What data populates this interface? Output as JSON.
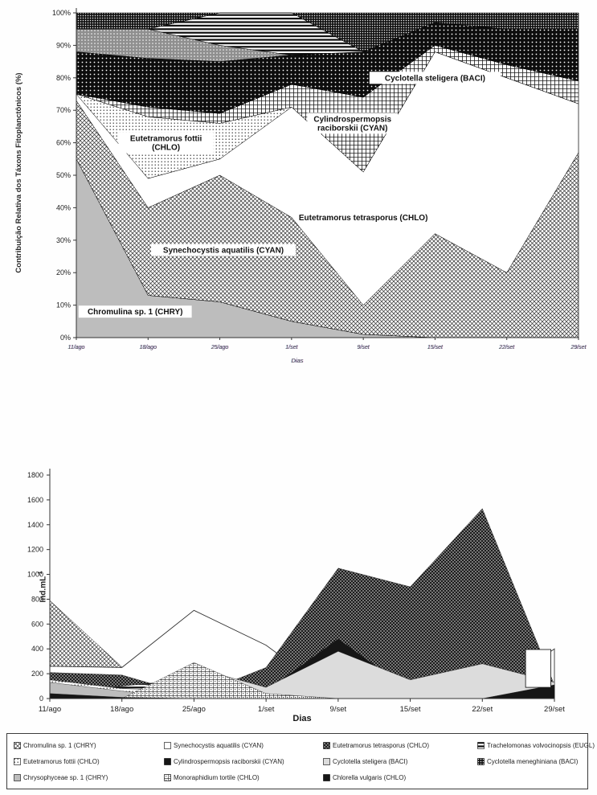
{
  "top_chart": {
    "y_axis_title": "Contribuição Relativa dos Táxons Fitoplanctônicos (%)",
    "x_axis_title": "Dias",
    "y_tick_labels": [
      "0%",
      "10%",
      "20%",
      "30%",
      "40%",
      "50%",
      "60%",
      "70%",
      "80%",
      "90%",
      "100%"
    ],
    "x_tick_labels": [
      "11/ago",
      "18/ago",
      "25/ago",
      "1/set",
      "9/set",
      "15/set",
      "22/set",
      "29/set"
    ],
    "inline_labels": [
      {
        "lines": [
          "Chromulina sp. 1 (CHRY)"
        ],
        "cat": 0.82,
        "pct": 8,
        "boxed": true
      },
      {
        "lines": [
          "Synechocystis aquatilis (CYAN)"
        ],
        "cat": 2.05,
        "pct": 27,
        "boxed": true
      },
      {
        "lines": [
          "Eutetramorus fottii",
          "(CHLO)"
        ],
        "cat": 1.25,
        "pct": 60,
        "boxed": true
      },
      {
        "lines": [
          "Eutetramorus tetrasporus (CHLO)"
        ],
        "cat": 4.0,
        "pct": 37,
        "boxed": false
      },
      {
        "lines": [
          "Cylindrospermopsis",
          "raciborskii (CYAN)"
        ],
        "cat": 3.85,
        "pct": 66,
        "boxed": true
      },
      {
        "lines": [
          "Cyclotella steligera (BACI)"
        ],
        "cat": 5.0,
        "pct": 80,
        "boxed": true
      }
    ]
  },
  "bottom_chart": {
    "y_axis_title": "Ind.mL",
    "y_axis_title_sup": "-1",
    "x_axis_title": "Dias",
    "y_tick_labels": [
      "0",
      "200",
      "400",
      "600",
      "800",
      "1000",
      "1200",
      "1400",
      "1600",
      "1800"
    ],
    "x_tick_labels": [
      "11/ago",
      "18/ago",
      "25/ago",
      "1/set",
      "9/set",
      "15/set",
      "22/set",
      "29/set"
    ]
  },
  "legend": {
    "items": [
      {
        "label": "Chromulina sp. 1 (CHRY)",
        "pattern": "diagCross"
      },
      {
        "label": "Synechocystis aquatilis (CYAN)",
        "pattern": "white"
      },
      {
        "label": "Eutetramorus tetrasporus (CHLO)",
        "pattern": "darkCross"
      },
      {
        "label": "Trachelomonas volvocinopsis (EUGL)",
        "pattern": "hStripes"
      },
      {
        "label": "Eutetramorus fottii (CHLO)",
        "pattern": "dotsLight"
      },
      {
        "label": "Cylindrospermopsis raciborskii (CYAN)",
        "pattern": "black"
      },
      {
        "label": "Cyclotella steligera (BACI)",
        "pattern": "lightGray"
      },
      {
        "label": "Cyclotella meneghiniana (BACI)",
        "pattern": "fineCheck"
      },
      {
        "label": "Chrysophyceae sp. 1 (CHRY)",
        "pattern": "gray"
      },
      {
        "label": "Monoraphidium tortile (CHLO)",
        "pattern": "plusGrid"
      },
      {
        "label": "Chlorella vulgaris (CHLO)",
        "pattern": "black"
      }
    ]
  },
  "colors": {
    "axis": "#333333",
    "text": "#1f1f1f",
    "solid_gray": "#bdbdbd",
    "light_gray": "#dcdcdc",
    "black_fill": "#161616"
  },
  "chart_data": [
    {
      "type": "area",
      "stacking": "percent",
      "title": "",
      "xlabel": "Dias",
      "ylabel": "Contribuição Relativa dos Táxons Fitoplanctônicos (%)",
      "ylim": [
        0,
        100
      ],
      "grid": false,
      "categories": [
        "11/ago",
        "18/ago",
        "25/ago",
        "1/set",
        "9/set",
        "15/set",
        "22/set",
        "29/set"
      ],
      "series": [
        {
          "name": "Chromulina sp. 1 (CHRY)",
          "pattern": "gray",
          "values": [
            55,
            13,
            11,
            5,
            1,
            0,
            0,
            0
          ]
        },
        {
          "name": "Synechocystis aquatilis (CYAN)",
          "pattern": "diagCross",
          "values": [
            18,
            27,
            39,
            32,
            9,
            32,
            20,
            57
          ]
        },
        {
          "name": "Eutetramorus tetrasporus (CHLO)",
          "pattern": "white",
          "values": [
            2,
            9,
            5,
            34,
            41,
            56,
            60,
            15
          ]
        },
        {
          "name": "Eutetramorus fottii (CHLO)",
          "pattern": "dotsLight",
          "values": [
            0,
            19,
            11,
            0,
            0,
            0,
            0,
            0
          ]
        },
        {
          "name": "Cylindrospermopsis raciborskii (CYAN)",
          "pattern": "grid",
          "values": [
            0,
            3,
            3,
            7,
            23,
            2,
            4,
            7
          ]
        },
        {
          "name": "Cyclotella steligera (BACI)",
          "pattern": "blackDots",
          "values": [
            13,
            15,
            16,
            9,
            14,
            7,
            11,
            16
          ]
        },
        {
          "name": "band-gray-dotted (unlabeled)",
          "pattern": "grayDots",
          "values": [
            7,
            9,
            5,
            0,
            0,
            0,
            0,
            0
          ]
        },
        {
          "name": "band-horizontal-stripes (unlabeled)",
          "pattern": "hStripes",
          "values": [
            0,
            0,
            10,
            13,
            0,
            0,
            0,
            0
          ]
        },
        {
          "name": "band-fine-check (unlabeled)",
          "pattern": "fineCheck",
          "values": [
            5,
            5,
            0,
            0,
            12,
            3,
            5,
            5
          ]
        }
      ]
    },
    {
      "type": "area",
      "stacking": "overlap",
      "title": "",
      "xlabel": "Dias",
      "ylabel": "Ind.mL-1",
      "ylim": [
        0,
        1800
      ],
      "grid": false,
      "legend_position": "bottom",
      "categories": [
        "11/ago",
        "18/ago",
        "25/ago",
        "1/set",
        "9/set",
        "15/set",
        "22/set",
        "29/set"
      ],
      "series": [
        {
          "name": "Chromulina sp. 1 (CHRY)",
          "pattern": "diagCross",
          "values": [
            790,
            255,
            60,
            10,
            10,
            10,
            10,
            10
          ]
        },
        {
          "name": "Synechocystis aquatilis (CYAN)",
          "pattern": "white",
          "values": [
            260,
            250,
            710,
            430,
            0,
            0,
            0,
            400
          ]
        },
        {
          "name": "Eutetramorus tetrasporus (CHLO)",
          "pattern": "darkCross",
          "values": [
            210,
            190,
            20,
            250,
            1050,
            900,
            1530,
            110
          ]
        },
        {
          "name": "Trachelomonas volvocinopsis (EUGL)",
          "pattern": "hStripes",
          "values": [
            30,
            100,
            160,
            10,
            0,
            0,
            0,
            0
          ]
        },
        {
          "name": "Eutetramorus fottii (CHLO)",
          "pattern": "dotsLight",
          "values": [
            150,
            80,
            60,
            0,
            0,
            0,
            0,
            0
          ]
        },
        {
          "name": "Cylindrospermopsis raciborskii (CYAN)",
          "pattern": "black",
          "values": [
            20,
            10,
            10,
            60,
            480,
            60,
            10,
            10
          ]
        },
        {
          "name": "Cyclotella steligera (BACI)",
          "pattern": "lightGray",
          "values": [
            0,
            0,
            250,
            90,
            380,
            150,
            280,
            130
          ]
        },
        {
          "name": "Cyclotella meneghiniana (BACI)",
          "pattern": "fineCheck",
          "values": [
            40,
            20,
            10,
            0,
            0,
            0,
            0,
            0
          ]
        },
        {
          "name": "Chrysophyceae sp. 1 (CHRY)",
          "pattern": "gray",
          "values": [
            130,
            60,
            0,
            0,
            0,
            0,
            0,
            0
          ]
        },
        {
          "name": "Monoraphidium tortile (CHLO)",
          "pattern": "plusGrid",
          "values": [
            0,
            0,
            290,
            40,
            0,
            0,
            0,
            0
          ]
        },
        {
          "name": "Chlorella vulgaris (CHLO)",
          "pattern": "black",
          "values": [
            40,
            10,
            0,
            0,
            0,
            0,
            0,
            110
          ]
        }
      ],
      "annotation_box": {
        "cat_from": 6.6,
        "cat_to": 6.95,
        "value_top": 395,
        "value_bottom": 90
      }
    }
  ]
}
